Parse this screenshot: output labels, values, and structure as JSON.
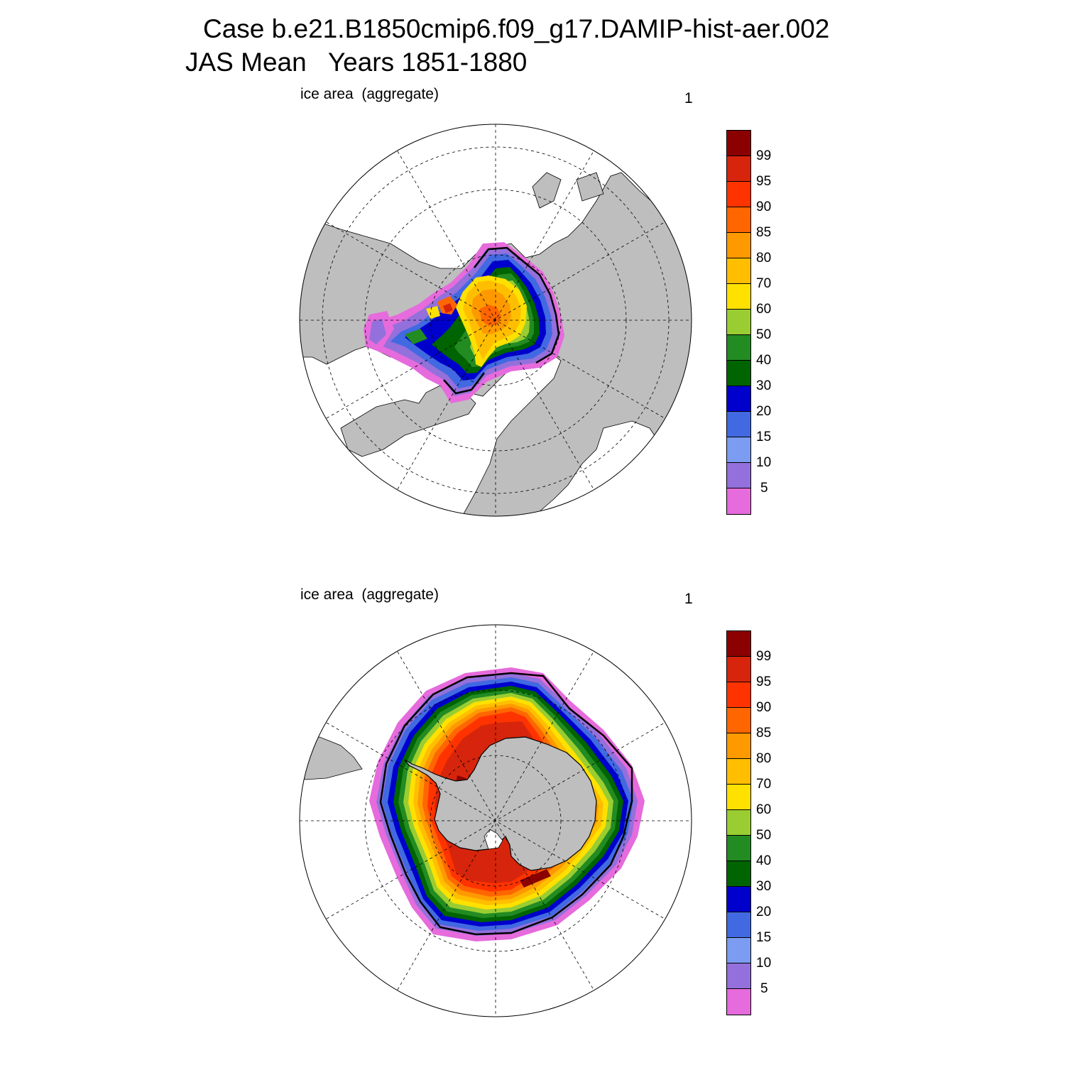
{
  "title_line1": "Case b.e21.B1850cmip6.f09_g17.DAMIP-hist-aer.002",
  "title_line2": "JAS Mean   Years 1851-1880",
  "panels": [
    {
      "label": "ice area  (aggregate)",
      "number": "1",
      "hemisphere": "north"
    },
    {
      "label": "ice area  (aggregate)",
      "number": "1",
      "hemisphere": "south"
    }
  ],
  "colorbar": {
    "colors": [
      "#8b0000",
      "#d6250c",
      "#ff3300",
      "#ff6600",
      "#ff9900",
      "#ffbf00",
      "#ffe100",
      "#9acd32",
      "#228b22",
      "#006400",
      "#0000cd",
      "#4169e1",
      "#7b9cf0",
      "#9370db",
      "#e66bdc"
    ],
    "tick_labels": [
      "99",
      "95",
      "90",
      "85",
      "80",
      "70",
      "60",
      "50",
      "40",
      "30",
      "20",
      "15",
      "10",
      "5"
    ]
  },
  "colors": {
    "land": "#bebebe",
    "ocean": "#ffffff",
    "grid": "#000000"
  }
}
